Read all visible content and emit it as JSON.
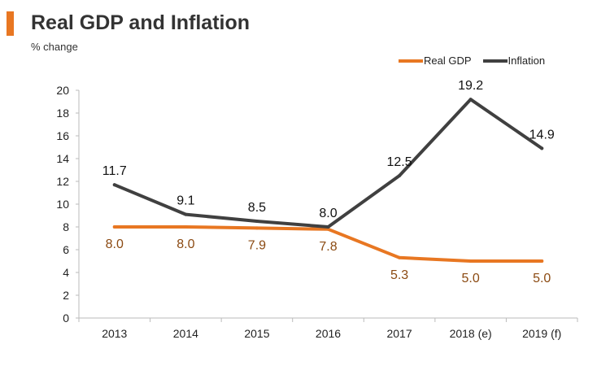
{
  "header": {
    "title": "Real GDP and Inflation",
    "subtitle": "% change"
  },
  "colors": {
    "accent": "#E87722",
    "gdp_line": "#E87722",
    "gdp_label": "#8B4A12",
    "inflation_line": "#404040",
    "axis": "#bbbbbb"
  },
  "chart_data": {
    "type": "line",
    "title": "Real GDP and Inflation",
    "subtitle": "% change",
    "xlabel": "",
    "ylabel": "",
    "categories": [
      "2013",
      "2014",
      "2015",
      "2016",
      "2017",
      "2018 (e)",
      "2019 (f)"
    ],
    "ylim": [
      0,
      20
    ],
    "yticks": [
      0,
      2,
      4,
      6,
      8,
      10,
      12,
      14,
      16,
      18,
      20
    ],
    "grid": false,
    "legend_position": "top-right",
    "series": [
      {
        "name": "Real GDP",
        "values": [
          8.0,
          8.0,
          7.9,
          7.8,
          5.3,
          5.0,
          5.0
        ],
        "labels": [
          "8.0",
          "8.0",
          "7.9",
          "7.8",
          "5.3",
          "5.0",
          "5.0"
        ],
        "label_position": "below"
      },
      {
        "name": "Inflation",
        "values": [
          11.7,
          9.1,
          8.5,
          8.0,
          12.5,
          19.2,
          14.9
        ],
        "labels": [
          "11.7",
          "9.1",
          "8.5",
          "8.0",
          "12.5",
          "19.2",
          "14.9"
        ],
        "label_position": "above"
      }
    ]
  }
}
